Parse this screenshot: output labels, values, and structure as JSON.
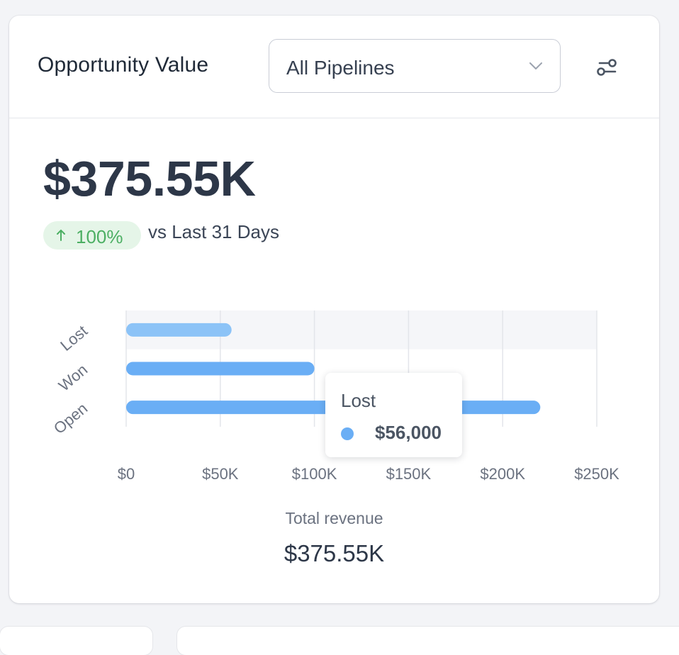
{
  "header": {
    "title": "Opportunity Value",
    "pipeline_select": {
      "value": "All Pipelines"
    },
    "filter_icon": "sliders-icon"
  },
  "summary": {
    "value": "$375.55K",
    "change": "100%",
    "change_direction": "up",
    "compare_text": "vs Last 31 Days"
  },
  "colors": {
    "bar": "#6aaef5",
    "bar_hover": "#8cc3f7",
    "badge_text": "#4caf63",
    "badge_bg": "#e5f5e8"
  },
  "chart_data": {
    "type": "bar",
    "orientation": "horizontal",
    "categories": [
      "Lost",
      "Won",
      "Open"
    ],
    "values": [
      56000,
      100000,
      220000
    ],
    "xlim": [
      0,
      250000
    ],
    "x_ticks": [
      "$0",
      "$50K",
      "$100K",
      "$150K",
      "$200K",
      "$250K"
    ],
    "x_tick_values": [
      0,
      50000,
      100000,
      150000,
      200000,
      250000
    ],
    "grid": true,
    "highlighted": "Lost"
  },
  "tooltip": {
    "title": "Lost",
    "value": "$56,000"
  },
  "footer": {
    "total_label": "Total revenue",
    "total_value": "$375.55K"
  }
}
